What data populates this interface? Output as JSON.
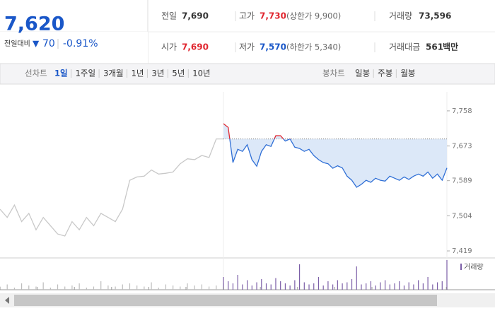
{
  "quote": {
    "price": "7,620",
    "change_label": "전일대비",
    "change": "70",
    "change_rate": "-0.91%"
  },
  "stats": [
    {
      "label": "전일",
      "value": "7,690"
    },
    {
      "label": "고가",
      "value": "7,730",
      "note": "(상한가 9,900)"
    },
    {
      "label": "거래량",
      "value": "73,596"
    },
    {
      "label": "시가",
      "value": "7,690"
    },
    {
      "label": "저가",
      "value": "7,570",
      "note": "(하한가 5,340)"
    },
    {
      "label": "거래대금",
      "value": "561",
      "unit": "백만"
    }
  ],
  "tabs": {
    "line_label": "선차트",
    "line": [
      "1일",
      "1주일",
      "3개월",
      "1년",
      "3년",
      "5년",
      "10년"
    ],
    "candle_label": "봉차트",
    "candle": [
      "일봉",
      "주봉",
      "월봉"
    ]
  },
  "chart_data": {
    "type": "line",
    "ylim": [
      7402,
      7804
    ],
    "yticks": [
      {
        "value": 7758,
        "label": "7,758"
      },
      {
        "value": 7673,
        "label": "7,673"
      },
      {
        "value": 7589,
        "label": "7,589"
      },
      {
        "value": 7504,
        "label": "7,504"
      },
      {
        "value": 7419,
        "label": "7,419"
      }
    ],
    "reference": 7690,
    "series": [
      {
        "color": "#c8c8c8",
        "values": [
          7520,
          7500,
          7530,
          7490,
          7510,
          7470,
          7500,
          7480,
          7460,
          7455,
          7490,
          7470,
          7500,
          7480,
          7510,
          7500,
          7490,
          7520,
          7590,
          7598,
          7600,
          7615,
          7605,
          7607,
          7610,
          7630,
          7642,
          7640,
          7650,
          7645,
          7690,
          7690
        ]
      },
      {
        "color": "#2f6fd6",
        "up_color": "#e0262f",
        "values": [
          7727,
          7718,
          7633,
          7665,
          7660,
          7676,
          7640,
          7624,
          7660,
          7676,
          7672,
          7698,
          7698,
          7685,
          7690,
          7670,
          7667,
          7660,
          7665,
          7650,
          7640,
          7633,
          7630,
          7619,
          7625,
          7620,
          7600,
          7590,
          7573,
          7580,
          7590,
          7585,
          7595,
          7590,
          7588,
          7600,
          7595,
          7590,
          7598,
          7592,
          7600,
          7605,
          7600,
          7610,
          7595,
          7605,
          7590,
          7620
        ]
      }
    ],
    "volume_label": "거래량",
    "volume_series": [
      {
        "color": "#bdbdbd",
        "values": [
          3,
          5,
          2,
          6,
          4,
          3,
          7,
          2,
          5,
          3,
          4,
          6,
          2,
          3,
          8,
          4,
          3,
          5,
          6,
          4,
          3,
          7,
          2,
          5,
          4,
          3,
          6,
          4,
          5,
          3,
          4,
          6
        ]
      },
      {
        "color": "#7b5ea7",
        "values": [
          12,
          8,
          6,
          14,
          5,
          9,
          4,
          7,
          10,
          6,
          5,
          11,
          8,
          6,
          4,
          9,
          24,
          7,
          5,
          6,
          12,
          4,
          8,
          5,
          9,
          6,
          7,
          10,
          22,
          5,
          6,
          8,
          4,
          7,
          9,
          5,
          6,
          8,
          4,
          7,
          5,
          9,
          6,
          12,
          5,
          7,
          8,
          28
        ]
      }
    ]
  }
}
